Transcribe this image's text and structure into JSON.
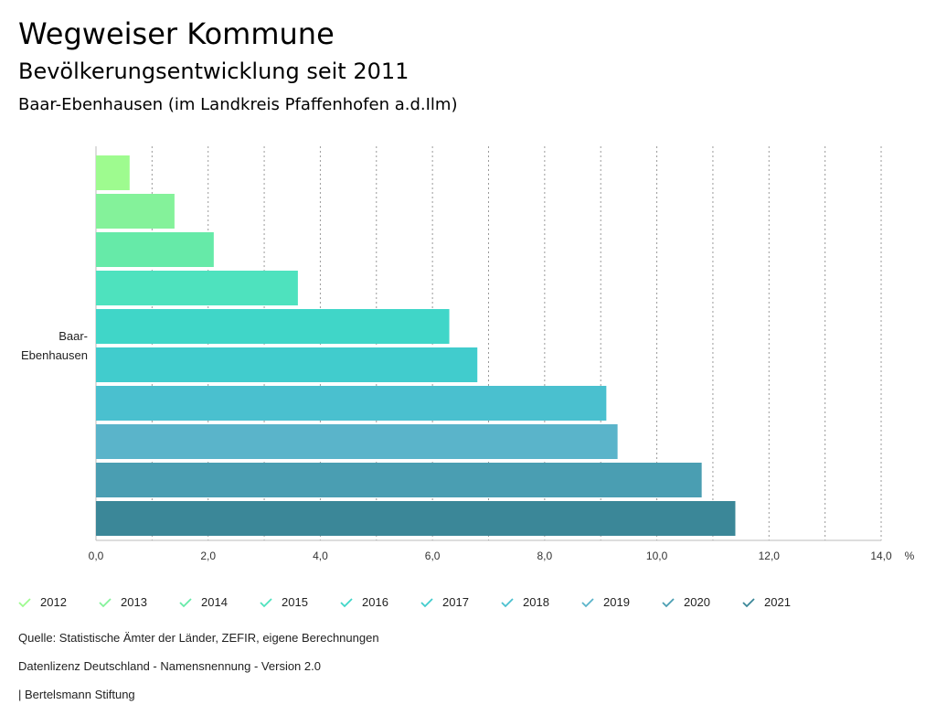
{
  "header": {
    "title": "Wegweiser Kommune",
    "subtitle": "Bevölkerungsentwicklung seit 2011",
    "region": "Baar-Ebenhausen (im Landkreis Pfaffenhofen a.d.Ilm)"
  },
  "chart_data": {
    "type": "bar",
    "orientation": "horizontal",
    "category": "Baar-Ebenhausen",
    "category_lines": [
      "Baar-",
      "Ebenhausen"
    ],
    "series": [
      {
        "name": "2012",
        "value": 0.6,
        "color": "#9efb8f"
      },
      {
        "name": "2013",
        "value": 1.4,
        "color": "#84f29a"
      },
      {
        "name": "2014",
        "value": 2.1,
        "color": "#66eaa8"
      },
      {
        "name": "2015",
        "value": 3.6,
        "color": "#4ee2be"
      },
      {
        "name": "2016",
        "value": 6.3,
        "color": "#40d6c8"
      },
      {
        "name": "2017",
        "value": 6.8,
        "color": "#41cccd"
      },
      {
        "name": "2018",
        "value": 9.1,
        "color": "#4ac0cf"
      },
      {
        "name": "2019",
        "value": 9.3,
        "color": "#5ab4ca"
      },
      {
        "name": "2020",
        "value": 10.8,
        "color": "#4a9eb2"
      },
      {
        "name": "2021",
        "value": 11.4,
        "color": "#3b8798"
      }
    ],
    "xlim": [
      0,
      14
    ],
    "xticks": [
      0,
      2,
      4,
      6,
      8,
      10,
      12,
      14
    ],
    "xtick_labels": [
      "0,0",
      "2,0",
      "4,0",
      "6,0",
      "8,0",
      "10,0",
      "12,0",
      "14,0"
    ],
    "xunit": "%",
    "grid": true
  },
  "footer": {
    "source": "Quelle: Statistische Ämter der Länder, ZEFIR, eigene Berechnungen",
    "license": "Datenlizenz Deutschland - Namensnennung - Version 2.0",
    "publisher": "| Bertelsmann Stiftung"
  }
}
